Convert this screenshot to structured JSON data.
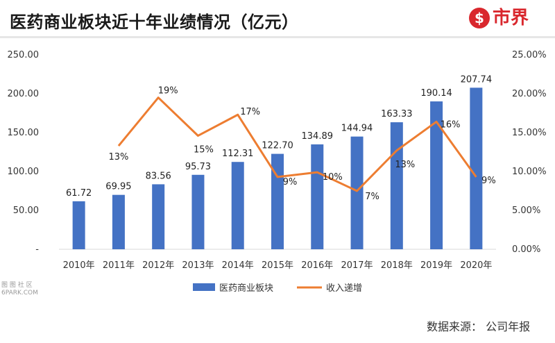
{
  "header": {
    "title": "医药商业板块近十年业绩情况（亿元）",
    "logo_glyph": "$",
    "logo_text": "市界"
  },
  "source": "数据来源：  公司年报",
  "watermark": {
    "line1": "图 图 社 区",
    "line2": "6PARK.COM"
  },
  "chart_data": {
    "type": "bar",
    "categories": [
      "2010年",
      "2011年",
      "2012年",
      "2013年",
      "2014年",
      "2015年",
      "2016年",
      "2017年",
      "2018年",
      "2019年",
      "2020年"
    ],
    "series": [
      {
        "name": "医药商业板块",
        "type": "bar",
        "axis": "left",
        "color": "#4472c4",
        "values": [
          61.72,
          69.95,
          83.56,
          95.73,
          112.31,
          122.7,
          134.89,
          144.94,
          163.33,
          190.14,
          207.74
        ],
        "labels": [
          "61.72",
          "69.95",
          "83.56",
          "95.73",
          "112.31",
          "122.70",
          "134.89",
          "144.94",
          "163.33",
          "190.14",
          "207.74"
        ]
      },
      {
        "name": "收入递增",
        "type": "line",
        "axis": "right",
        "color": "#ed7d31",
        "values": [
          null,
          13.3,
          19.5,
          14.6,
          17.3,
          9.3,
          9.9,
          7.5,
          12.7,
          16.4,
          9.3
        ],
        "labels": [
          null,
          "13%",
          "19%",
          "15%",
          "17%",
          "9%",
          "10%",
          "7%",
          "13%",
          "16%",
          "9%"
        ]
      }
    ],
    "y_left": {
      "min": 0,
      "max": 250,
      "ticks": [
        "-",
        "50.00",
        "100.00",
        "150.00",
        "200.00",
        "250.00"
      ]
    },
    "y_right": {
      "min": 0,
      "max": 25,
      "ticks": [
        "0.00%",
        "5.00%",
        "10.00%",
        "15.00%",
        "20.00%",
        "25.00%"
      ]
    },
    "grid": false,
    "legend": "bottom"
  }
}
